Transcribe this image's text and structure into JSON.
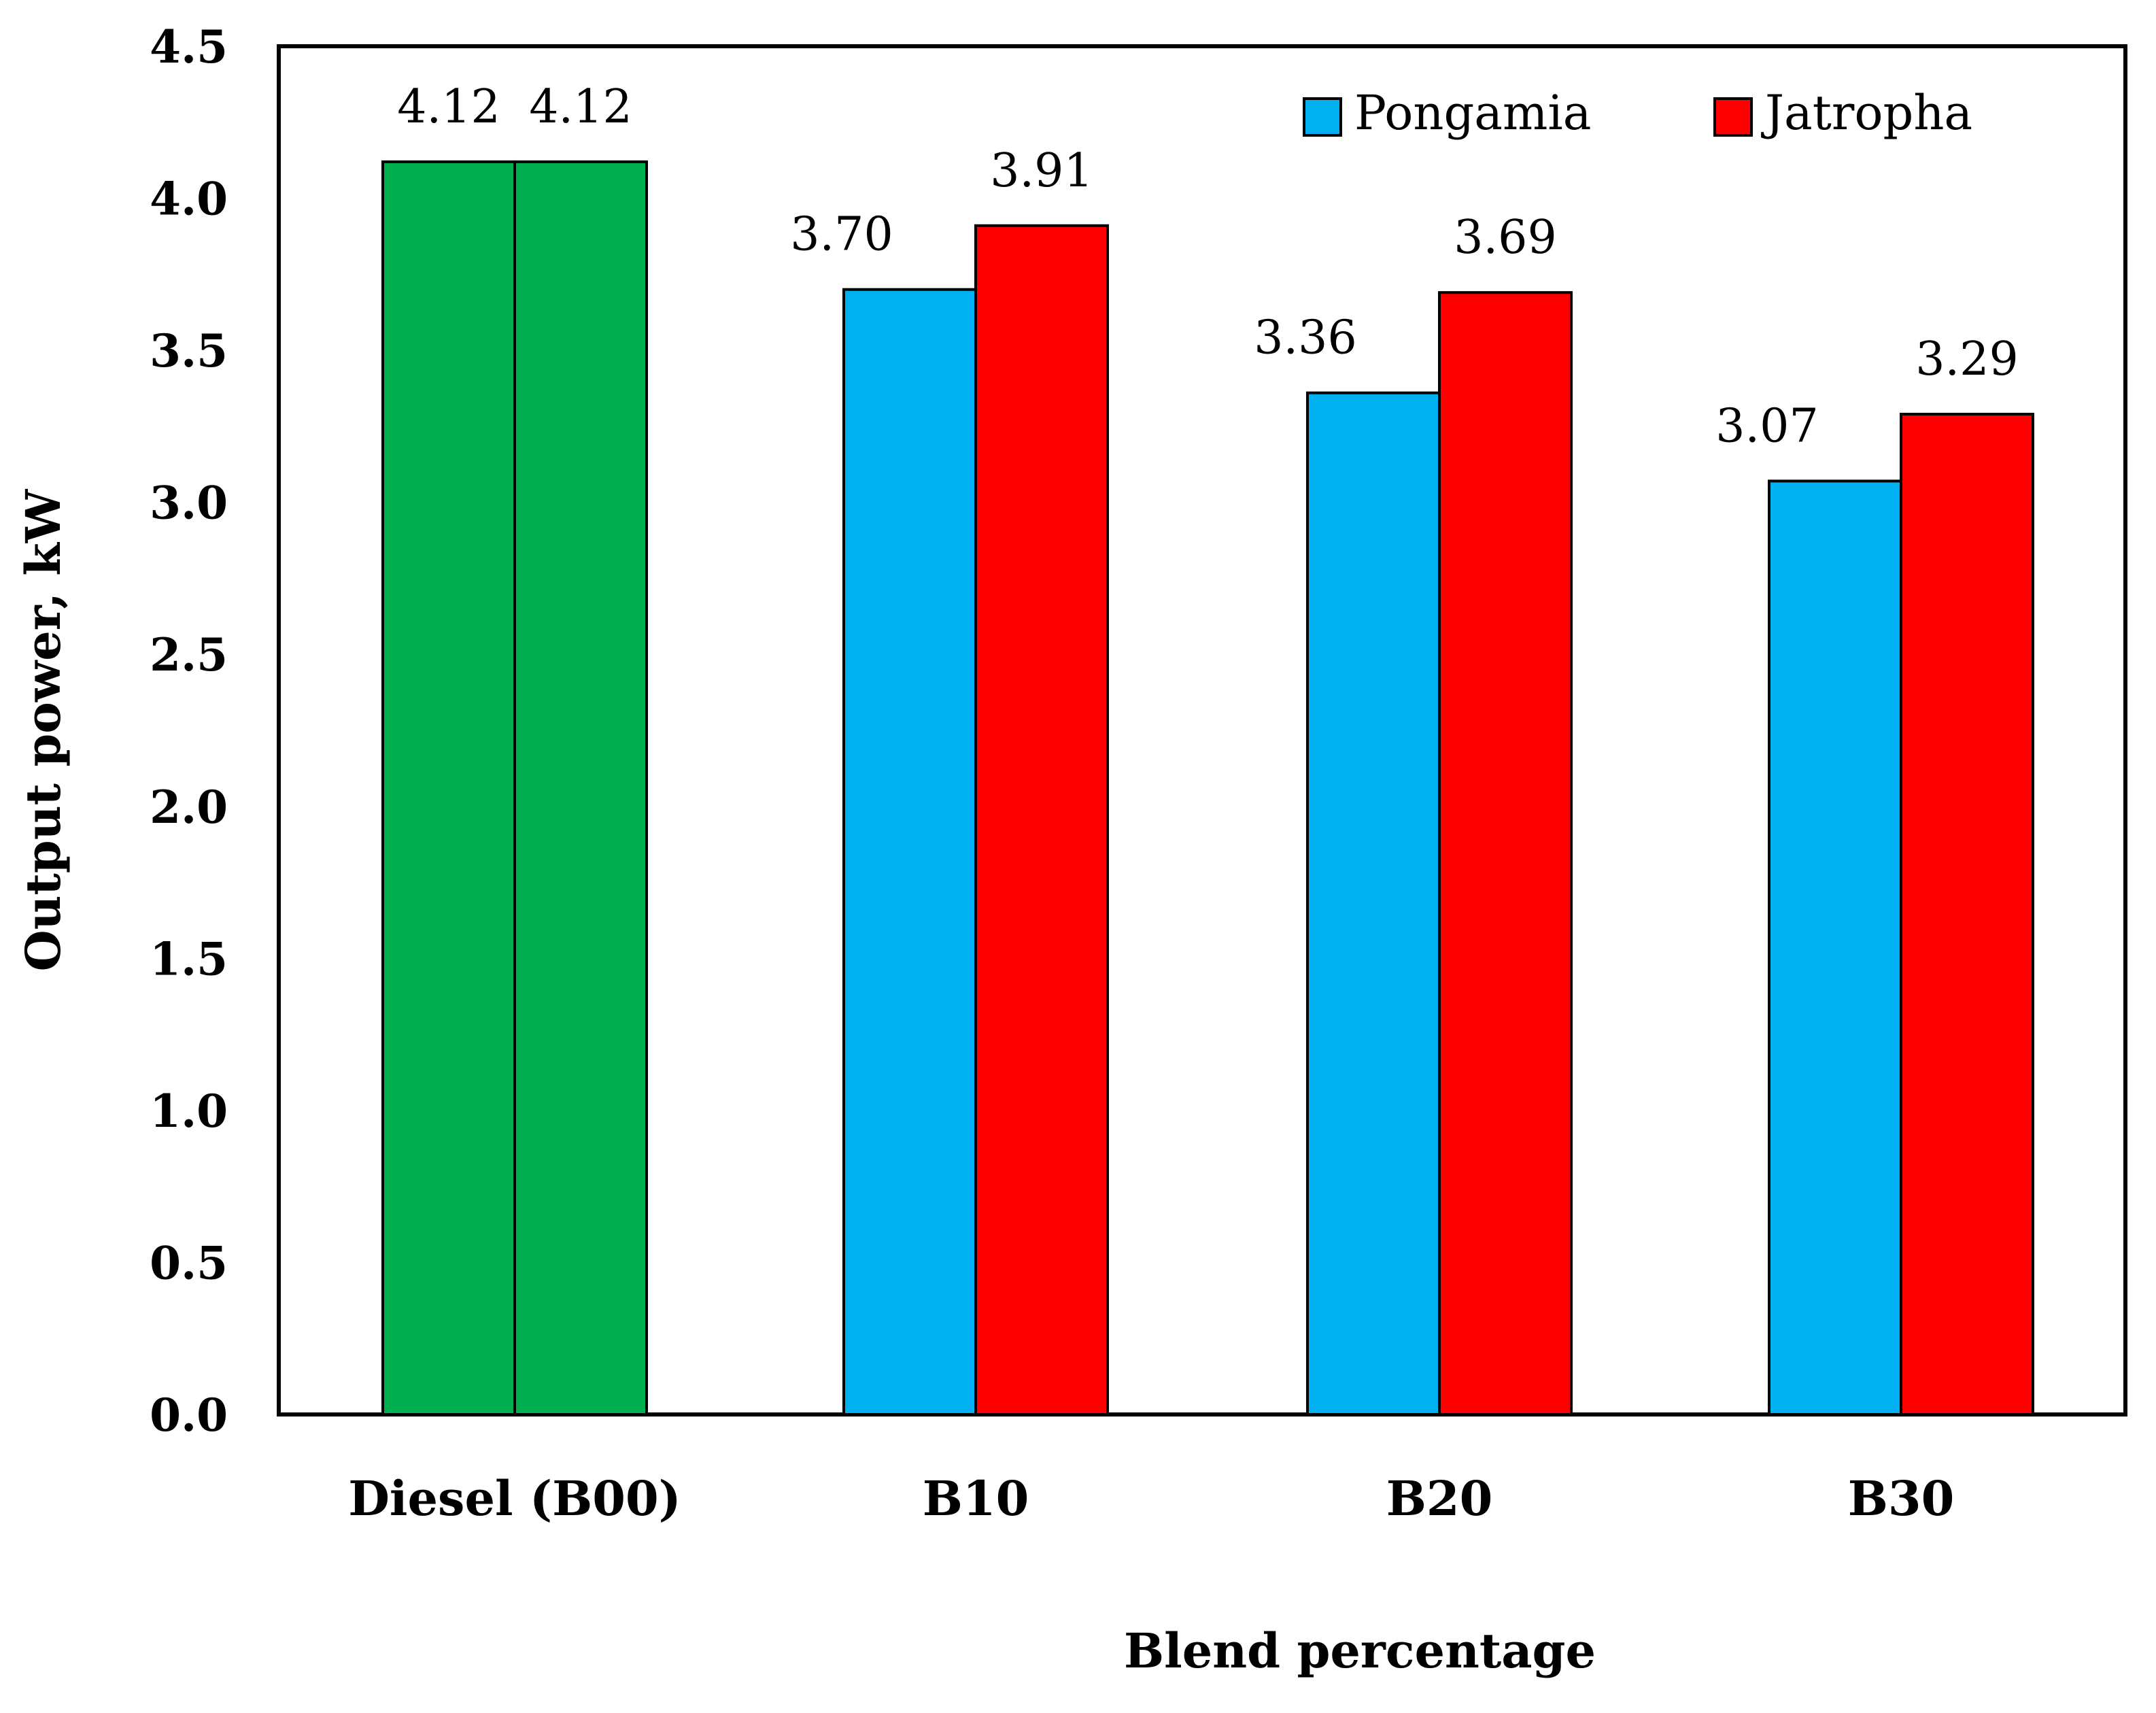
{
  "chart_data": {
    "type": "bar",
    "categories": [
      "Diesel (B00)",
      "B10",
      "B20",
      "B30"
    ],
    "series": [
      {
        "name": "Pongamia",
        "values": [
          4.12,
          3.7,
          3.36,
          3.07
        ],
        "labels": [
          "4.12",
          "3.70",
          "3.36",
          "3.07"
        ]
      },
      {
        "name": "Jatropha",
        "values": [
          4.12,
          3.91,
          3.69,
          3.29
        ],
        "labels": [
          "4.12",
          "3.91",
          "3.69",
          "3.29"
        ]
      }
    ],
    "baseline_category": "Diesel (B00)",
    "xlabel": "Blend percentage",
    "ylabel": "Output power, kW",
    "ylim": [
      0,
      4.5
    ],
    "yticks": [
      "0.0",
      "0.5",
      "1.0",
      "1.5",
      "2.0",
      "2.5",
      "3.0",
      "3.5",
      "4.0",
      "4.5"
    ],
    "legend_position": "top-right",
    "grid": false,
    "colors": {
      "Pongamia": "#00b0f0",
      "Jatropha": "#ff0000",
      "baseline": "#00b050",
      "axis": "#000000"
    }
  }
}
